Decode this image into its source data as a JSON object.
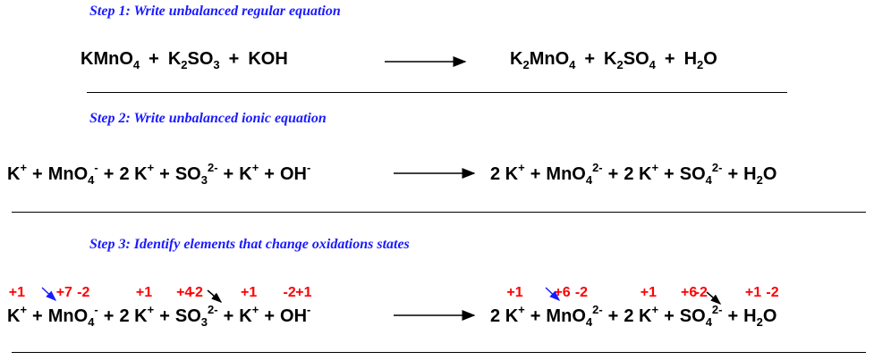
{
  "steps": [
    {
      "title": "Step 1: Write unbalanced regular equation",
      "equation": {
        "reactants": [
          [
            {
              "t": "KMnO"
            },
            {
              "sub": "4"
            }
          ],
          [
            {
              "t": "+"
            }
          ],
          [
            {
              "t": "K"
            },
            {
              "sub": "2"
            },
            {
              "t": "SO"
            },
            {
              "sub": "3"
            }
          ],
          [
            {
              "t": "+"
            }
          ],
          [
            {
              "t": "KOH"
            }
          ]
        ],
        "products": [
          [
            {
              "t": "K"
            },
            {
              "sub": "2"
            },
            {
              "t": "MnO"
            },
            {
              "sub": "4"
            }
          ],
          [
            {
              "t": "+"
            }
          ],
          [
            {
              "t": "K"
            },
            {
              "sub": "2"
            },
            {
              "t": "SO"
            },
            {
              "sub": "4"
            }
          ],
          [
            {
              "t": "+"
            }
          ],
          [
            {
              "t": "H"
            },
            {
              "sub": "2"
            },
            {
              "t": "O"
            }
          ]
        ]
      }
    },
    {
      "title": "Step 2: Write unbalanced ionic equation",
      "equation": {
        "reactants": [
          [
            {
              "t": "K"
            },
            {
              "sup": "+"
            }
          ],
          [
            {
              "t": "+"
            }
          ],
          [
            {
              "t": "MnO"
            },
            {
              "sub": "4"
            },
            {
              "sup": "-"
            }
          ],
          [
            {
              "t": "+"
            }
          ],
          [
            {
              "t": "2 K"
            },
            {
              "sup": "+"
            }
          ],
          [
            {
              "t": "+"
            }
          ],
          [
            {
              "t": "SO"
            },
            {
              "sub": "3"
            },
            {
              "sup": "2-"
            }
          ],
          [
            {
              "t": "+"
            }
          ],
          [
            {
              "t": "K"
            },
            {
              "sup": "+"
            }
          ],
          [
            {
              "t": "+"
            }
          ],
          [
            {
              "t": "OH"
            },
            {
              "sup": "-"
            }
          ]
        ],
        "products": [
          [
            {
              "t": "2 K"
            },
            {
              "sup": "+"
            }
          ],
          [
            {
              "t": "+"
            }
          ],
          [
            {
              "t": "MnO"
            },
            {
              "sub": "4"
            },
            {
              "sup": "2-"
            }
          ],
          [
            {
              "t": "+"
            }
          ],
          [
            {
              "t": "2 K"
            },
            {
              "sup": "+"
            }
          ],
          [
            {
              "t": "+"
            }
          ],
          [
            {
              "t": "SO"
            },
            {
              "sub": "4"
            },
            {
              "sup": "2-"
            }
          ],
          [
            {
              "t": "+"
            }
          ],
          [
            {
              "t": "H"
            },
            {
              "sub": "2"
            },
            {
              "t": "O"
            }
          ]
        ]
      }
    },
    {
      "title": "Step 3: Identify elements that change oxidations states",
      "equation": {
        "reactants": [
          [
            {
              "t": "K",
              "ox": "+1"
            },
            {
              "sup": "+"
            }
          ],
          [
            {
              "t": "+"
            }
          ],
          [
            {
              "t": "Mn",
              "ox": "+7"
            },
            {
              "t": "O",
              "ox": "-2"
            },
            {
              "sub": "4"
            },
            {
              "sup": "-"
            }
          ],
          [
            {
              "t": "+"
            }
          ],
          [
            {
              "t": "2 "
            },
            {
              "t": "K",
              "ox": "+1"
            },
            {
              "sup": "+"
            }
          ],
          [
            {
              "t": "+"
            }
          ],
          [
            {
              "t": "S",
              "ox": "+4"
            },
            {
              "t": "O",
              "ox": "-2"
            },
            {
              "sub": "3"
            },
            {
              "sup": "2-"
            }
          ],
          [
            {
              "t": "+"
            }
          ],
          [
            {
              "t": "K",
              "ox": "+1"
            },
            {
              "sup": "+"
            }
          ],
          [
            {
              "t": "+"
            }
          ],
          [
            {
              "t": "O",
              "ox": "-2"
            },
            {
              "t": "H",
              "ox": "+1"
            },
            {
              "sup": "-"
            }
          ]
        ],
        "products": [
          [
            {
              "t": "2 "
            },
            {
              "t": "K",
              "ox": "+1"
            },
            {
              "sup": "+"
            }
          ],
          [
            {
              "t": "+"
            }
          ],
          [
            {
              "t": "Mn",
              "ox": "+6"
            },
            {
              "t": "O",
              "ox": "-2"
            },
            {
              "sub": "4"
            },
            {
              "sup": "2-"
            }
          ],
          [
            {
              "t": "+"
            }
          ],
          [
            {
              "t": "2 "
            },
            {
              "t": "K",
              "ox": "+1"
            },
            {
              "sup": "+"
            }
          ],
          [
            {
              "t": "+"
            }
          ],
          [
            {
              "t": "S",
              "ox": "+6"
            },
            {
              "t": "O",
              "ox": "-2"
            },
            {
              "sub": "4"
            },
            {
              "sup": "2-"
            }
          ],
          [
            {
              "t": "+"
            }
          ],
          [
            {
              "t": "H",
              "ox": "+1"
            },
            {
              "sub": "2"
            },
            {
              "t": "O",
              "ox": "-2"
            }
          ]
        ]
      }
    }
  ]
}
